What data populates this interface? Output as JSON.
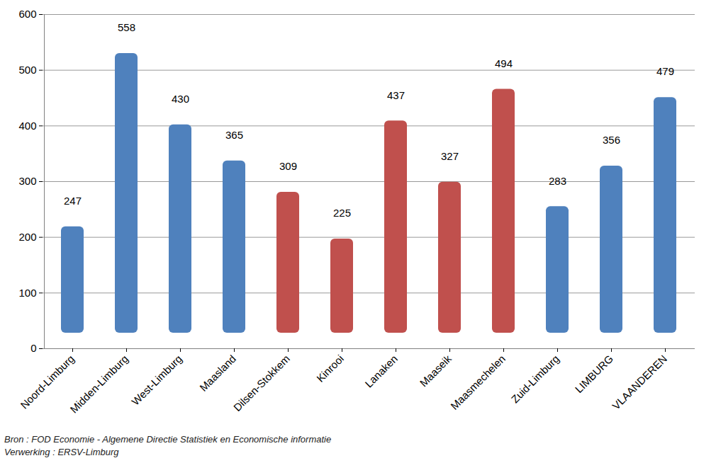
{
  "chart_data": {
    "type": "bar",
    "categories": [
      "Noord-Limburg",
      "Midden-Limburg",
      "West-Limburg",
      "Maasland",
      "Dilsen-Stokkem",
      "Kinrooi",
      "Lanaken",
      "Maaseik",
      "Maasmechelen",
      "Zuid-Limburg",
      "LIMBURG",
      "VLAANDEREN"
    ],
    "values": [
      247,
      558,
      430,
      365,
      309,
      225,
      437,
      327,
      494,
      283,
      356,
      479
    ],
    "colors": [
      "#4f81bd",
      "#4f81bd",
      "#4f81bd",
      "#4f81bd",
      "#c0504d",
      "#c0504d",
      "#c0504d",
      "#c0504d",
      "#c0504d",
      "#4f81bd",
      "#4f81bd",
      "#4f81bd"
    ],
    "ylim": [
      0,
      600
    ],
    "yticks": [
      0,
      100,
      200,
      300,
      400,
      500,
      600
    ],
    "grid": true,
    "data_labels": true,
    "caption": [
      "Bron : FOD Economie - Algemene Directie Statistiek en Economische informatie",
      "Verwerking : ERSV-Limburg"
    ]
  }
}
